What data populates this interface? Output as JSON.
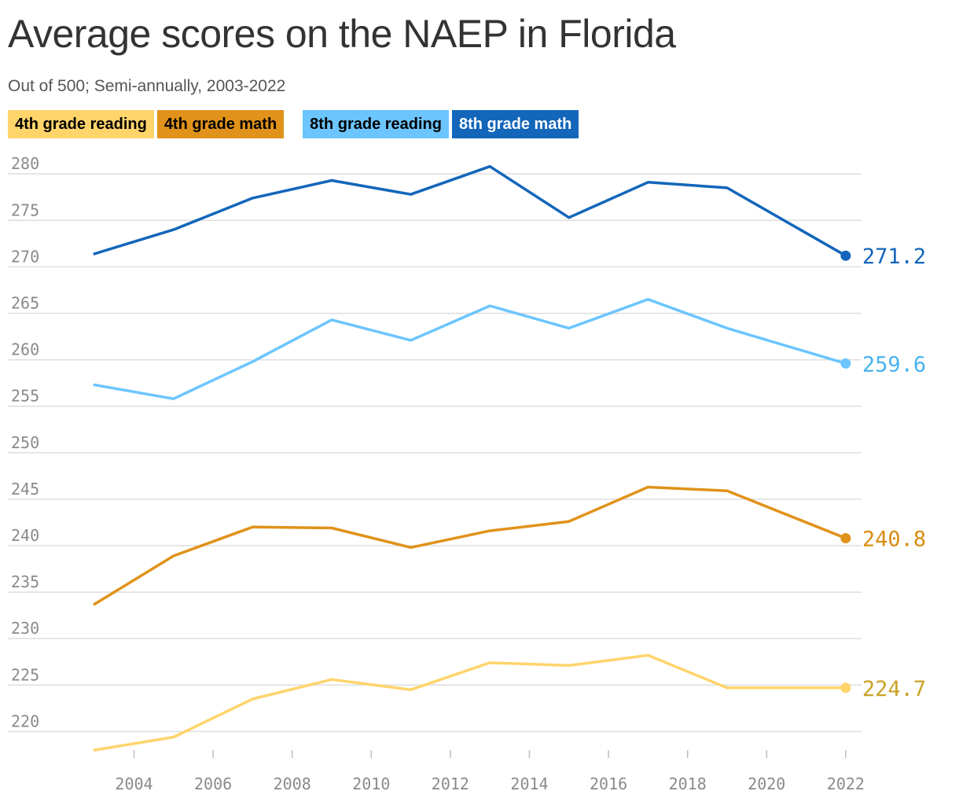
{
  "header": {
    "title": "Average scores on the NAEP in Florida",
    "subtitle": "Out of 500; Semi-annually, 2003-2022"
  },
  "chart_data": {
    "type": "line",
    "x": [
      2003,
      2005,
      2007,
      2009,
      2011,
      2013,
      2015,
      2017,
      2019,
      2022
    ],
    "xlim": [
      2002.3,
      2022.4
    ],
    "ylim": [
      218,
      281.2
    ],
    "x_ticks": [
      2004,
      2006,
      2008,
      2010,
      2012,
      2014,
      2016,
      2018,
      2020,
      2022
    ],
    "y_ticks": [
      220,
      225,
      230,
      235,
      240,
      245,
      250,
      255,
      260,
      265,
      270,
      275,
      280
    ],
    "grid": true,
    "legend_position": "top",
    "series": [
      {
        "name": "4th grade reading",
        "color": "#ffd46b",
        "label_color": "#c9a227",
        "values": [
          218,
          219.4,
          223.5,
          225.6,
          224.5,
          227.4,
          227.1,
          228.2,
          224.7,
          224.7
        ],
        "end_label": "224.7"
      },
      {
        "name": "4th grade math",
        "color": "#e0921a",
        "label_color": "#d98c12",
        "values": [
          233.7,
          238.9,
          242,
          241.9,
          239.8,
          241.6,
          242.6,
          246.3,
          245.9,
          240.8
        ],
        "end_label": "240.8"
      },
      {
        "name": "8th grade reading",
        "color": "#6cc5ff",
        "label_color": "#49b3ec",
        "values": [
          257.3,
          255.8,
          259.8,
          264.3,
          262.1,
          265.8,
          263.4,
          266.5,
          263.4,
          259.6
        ],
        "end_label": "259.6"
      },
      {
        "name": "8th grade math",
        "color": "#1366ba",
        "label_color": "#1366ba",
        "values": [
          271.4,
          274,
          277.4,
          279.3,
          277.8,
          280.8,
          275.3,
          279.1,
          278.5,
          271.2
        ],
        "end_label": "271.2"
      }
    ],
    "legend_text_colors": [
      "#000000",
      "#000000",
      "#000000",
      "#ffffff"
    ]
  }
}
